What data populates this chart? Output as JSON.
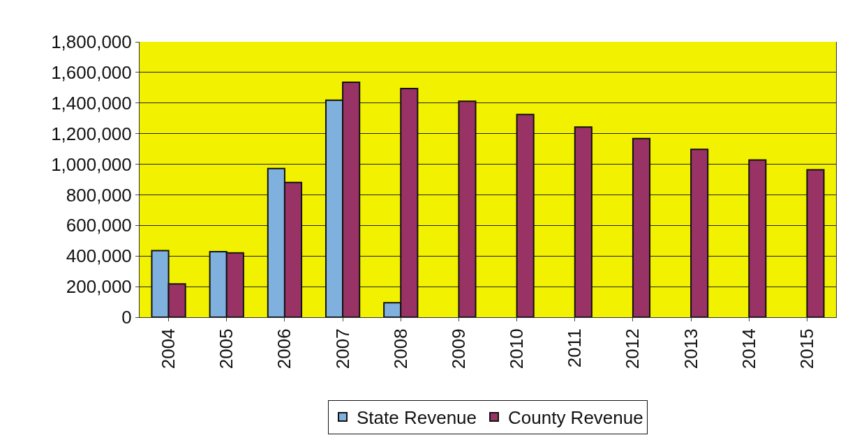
{
  "chart_data": {
    "type": "bar",
    "categories": [
      "2004",
      "2005",
      "2006",
      "2007",
      "2008",
      "2009",
      "2010",
      "2011",
      "2012",
      "2013",
      "2014",
      "2015"
    ],
    "series": [
      {
        "name": "State Revenue",
        "color": "#7fb0de",
        "values": [
          435000,
          428000,
          972000,
          1418000,
          94000,
          null,
          null,
          null,
          null,
          null,
          null,
          null
        ]
      },
      {
        "name": "County Revenue",
        "color": "#993366",
        "values": [
          218000,
          420000,
          881000,
          1536000,
          1495000,
          1411000,
          1325000,
          1243000,
          1168000,
          1097000,
          1028000,
          964000
        ]
      }
    ],
    "ylim": [
      0,
      1800000
    ],
    "yticks": [
      {
        "value": 0,
        "label": "0"
      },
      {
        "value": 200000,
        "label": "200,000"
      },
      {
        "value": 400000,
        "label": "400,000"
      },
      {
        "value": 600000,
        "label": "600,000"
      },
      {
        "value": 800000,
        "label": "800,000"
      },
      {
        "value": 1000000,
        "label": "1,000,000"
      },
      {
        "value": 1200000,
        "label": "1,200,000"
      },
      {
        "value": 1400000,
        "label": "1,400,000"
      },
      {
        "value": 1600000,
        "label": "1,600,000"
      },
      {
        "value": 1800000,
        "label": "1,800,000"
      }
    ],
    "grid": "y",
    "legend": "bottom"
  }
}
